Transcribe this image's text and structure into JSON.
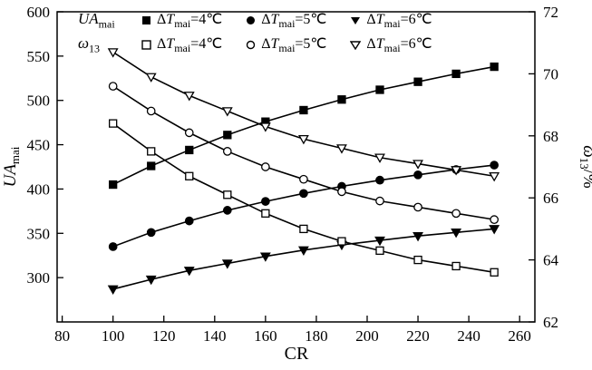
{
  "chart_data": {
    "type": "line",
    "title": "",
    "xlabel": "CR",
    "xlim": [
      78,
      266
    ],
    "x_ticks": [
      80,
      100,
      120,
      140,
      160,
      180,
      200,
      220,
      240,
      260
    ],
    "x": [
      100,
      115,
      130,
      145,
      160,
      175,
      190,
      205,
      220,
      235,
      250
    ],
    "left_axis": {
      "label_main": "UA",
      "label_sub": "mai",
      "lim": [
        250,
        600
      ],
      "ticks": [
        300,
        350,
        400,
        450,
        500,
        550,
        600
      ]
    },
    "right_axis": {
      "label_main": "ω",
      "label_sub": "13",
      "label_suffix": "/%",
      "lim": [
        62,
        72
      ],
      "ticks": [
        62,
        64,
        66,
        68,
        70,
        72
      ]
    },
    "series": [
      {
        "name": "UA_mai ΔT_mai=4℃",
        "axis": "left",
        "marker": "square",
        "variant": "filled",
        "values": [
          405,
          426,
          444,
          461,
          476,
          489,
          501,
          512,
          521,
          530,
          538
        ]
      },
      {
        "name": "UA_mai ΔT_mai=5℃",
        "axis": "left",
        "marker": "circle",
        "variant": "filled",
        "values": [
          335,
          351,
          364,
          376,
          386,
          395,
          403,
          410,
          416,
          422,
          427
        ]
      },
      {
        "name": "UA_mai ΔT_mai=6℃",
        "axis": "left",
        "marker": "triangle-down",
        "variant": "filled",
        "values": [
          287,
          298,
          308,
          316,
          324,
          331,
          337,
          342,
          347,
          351,
          355
        ]
      },
      {
        "name": "ω13 ΔT_mai=4℃",
        "axis": "right",
        "marker": "square",
        "variant": "open",
        "values": [
          68.4,
          67.5,
          66.7,
          66.1,
          65.5,
          65.0,
          64.6,
          64.3,
          64.0,
          63.8,
          63.6
        ]
      },
      {
        "name": "ω13 ΔT_mai=5℃",
        "axis": "right",
        "marker": "circle",
        "variant": "open",
        "values": [
          69.6,
          68.8,
          68.1,
          67.5,
          67.0,
          66.6,
          66.2,
          65.9,
          65.7,
          65.5,
          65.3
        ]
      },
      {
        "name": "ω13 ΔT_mai=6℃",
        "axis": "right",
        "marker": "triangle-down",
        "variant": "open",
        "values": [
          70.7,
          69.9,
          69.3,
          68.8,
          68.3,
          67.9,
          67.6,
          67.3,
          67.1,
          66.9,
          66.7
        ]
      }
    ],
    "legend_position": "top-inside",
    "grid": false
  },
  "legend": {
    "rows": [
      {
        "header_main": "UA",
        "header_sub": "mai",
        "items": [
          {
            "marker": "square-filled",
            "delta": "Δ",
            "t": "T",
            "sub": "mai",
            "value": "=4℃"
          },
          {
            "marker": "circle-filled",
            "delta": "Δ",
            "t": "T",
            "sub": "mai",
            "value": "=5℃"
          },
          {
            "marker": "triangle-filled",
            "delta": "Δ",
            "t": "T",
            "sub": "mai",
            "value": "=6℃"
          }
        ]
      },
      {
        "header_main": "ω",
        "header_sub": "13",
        "items": [
          {
            "marker": "square-open",
            "delta": "Δ",
            "t": "T",
            "sub": "mai",
            "value": "=4℃"
          },
          {
            "marker": "circle-open",
            "delta": "Δ",
            "t": "T",
            "sub": "mai",
            "value": "=5℃"
          },
          {
            "marker": "triangle-open",
            "delta": "Δ",
            "t": "T",
            "sub": "mai",
            "value": "=6℃"
          }
        ]
      }
    ]
  }
}
